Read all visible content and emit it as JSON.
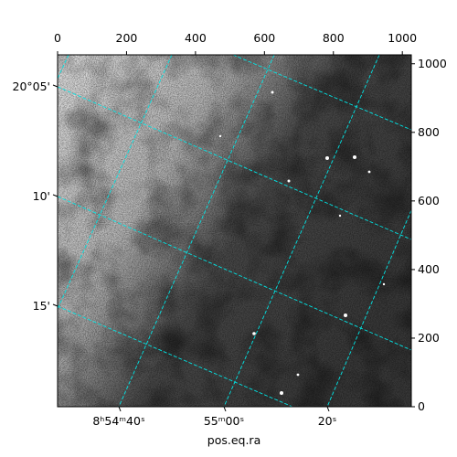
{
  "chart_data": {
    "type": "image",
    "xlabel": "pos.eq.ra",
    "xlim": [
      0,
      1026
    ],
    "ylim": [
      0,
      1026
    ],
    "xticks": [
      0,
      200,
      400,
      600,
      800,
      1000
    ],
    "yticks": [
      0,
      200,
      400,
      600,
      800,
      1000
    ],
    "ra_labels": [
      "8ʰ54ᵐ40ˢ",
      "55ᵐ00ˢ",
      "20ˢ"
    ],
    "dec_labels": [
      "20°05'",
      "10'",
      "15'"
    ]
  }
}
